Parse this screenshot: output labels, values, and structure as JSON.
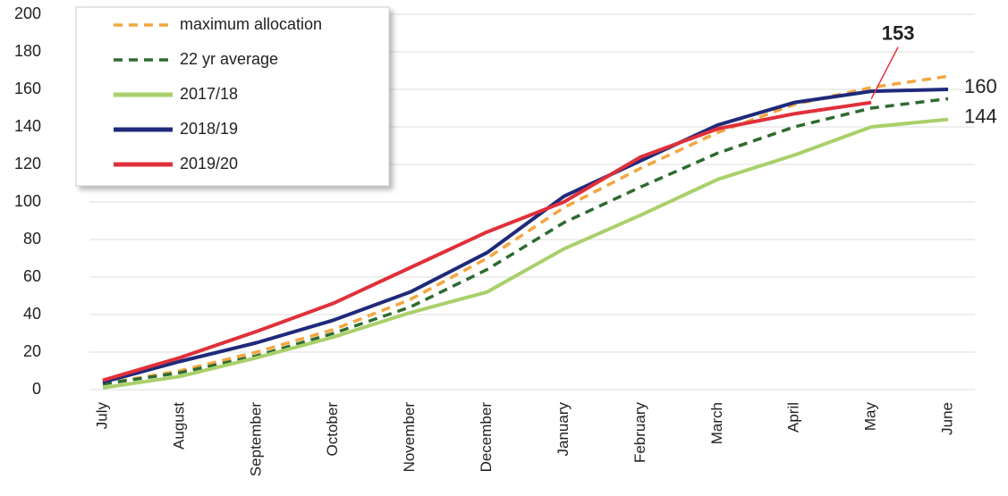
{
  "chart_data": {
    "type": "line",
    "categories": [
      "July",
      "August",
      "September",
      "October",
      "November",
      "December",
      "January",
      "February",
      "March",
      "April",
      "May",
      "June"
    ],
    "ylim": [
      0,
      200
    ],
    "yticks": [
      0,
      20,
      40,
      60,
      80,
      100,
      120,
      140,
      160,
      180,
      200
    ],
    "grid": true,
    "legend": "upper left",
    "series": [
      {
        "name": "maximum allocation",
        "color": "#f4a640",
        "dashed": true,
        "values": [
          3,
          10,
          20,
          32,
          48,
          70,
          97,
          118,
          137,
          152,
          161,
          167
        ]
      },
      {
        "name": "22 yr average",
        "color": "#2e6b30",
        "dashed": true,
        "values": [
          3,
          9,
          18,
          30,
          44,
          64,
          89,
          108,
          126,
          140,
          150,
          155
        ]
      },
      {
        "name": "2017/18",
        "color": "#a9d06a",
        "dashed": false,
        "end_label": true,
        "values": [
          1,
          7,
          17,
          28,
          41,
          52,
          75,
          93,
          112,
          125,
          140,
          144
        ]
      },
      {
        "name": "2018/19",
        "color": "#1f2a7a",
        "dashed": false,
        "end_label": true,
        "values": [
          4,
          15,
          25,
          37,
          52,
          73,
          103,
          122,
          141,
          153,
          159,
          160
        ]
      },
      {
        "name": "2019/20",
        "color": "#e0303a",
        "dashed": false,
        "end_label": true,
        "values": [
          5,
          17,
          31,
          46,
          65,
          84,
          100,
          124,
          139,
          147,
          153,
          null
        ]
      }
    ]
  }
}
